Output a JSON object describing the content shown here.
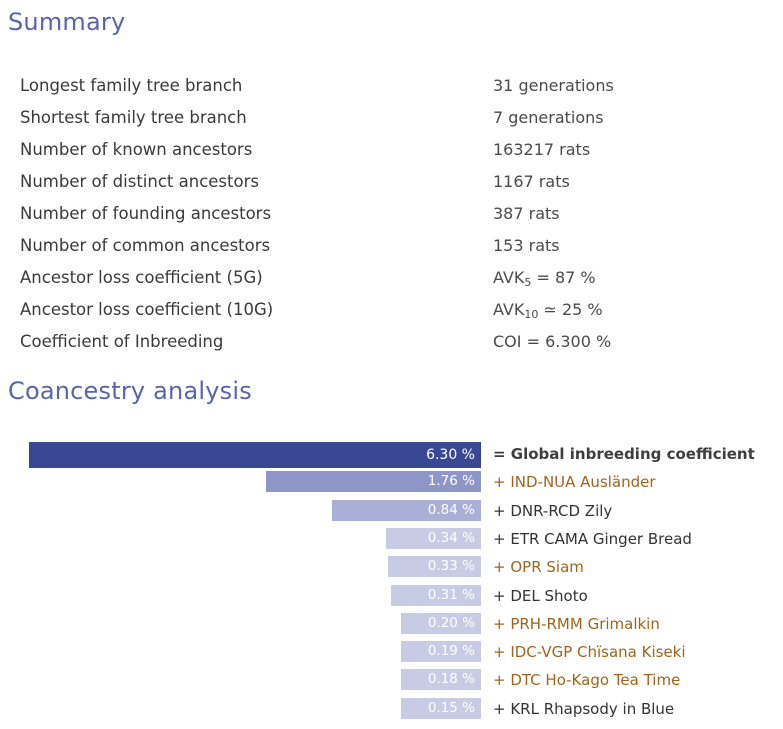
{
  "summary": {
    "title": "Summary",
    "rows": [
      {
        "label": "Longest family tree branch",
        "value": "31 generations"
      },
      {
        "label": "Shortest family tree branch",
        "value": "7 generations"
      },
      {
        "label": "Number of known ancestors",
        "value": "163217 rats"
      },
      {
        "label": "Number of distinct ancestors",
        "value": "1167 rats"
      },
      {
        "label": "Number of founding ancestors",
        "value": "387 rats"
      },
      {
        "label": "Number of common ancestors",
        "value": "153 rats"
      },
      {
        "label": "Ancestor loss coefficient (5G)",
        "value_prefix": "AVK",
        "value_sub": "5",
        "value_suffix": " = 87 %"
      },
      {
        "label": "Ancestor loss coefficient (10G)",
        "value_prefix": "AVK",
        "value_sub": "10",
        "value_suffix": " ≃ 25 %"
      },
      {
        "label": "Coefficient of Inbreeding",
        "value": "COI = 6.300 %"
      }
    ]
  },
  "coancestry": {
    "title": "Coancestry analysis"
  },
  "colors": {
    "title": "#5b63ad",
    "global_bar": "#3a4894",
    "bar_1": "#8e96c8",
    "bar_2": "#a9afd6",
    "bar_rest": "#c7cce4",
    "link_text": "#a0641e",
    "plain_text": "#333333"
  },
  "chart_data": {
    "type": "bar",
    "orientation": "horizontal",
    "bars": [
      {
        "value": 6.3,
        "value_label": "6.30 %",
        "label": "= Global inbreeding coefficient",
        "kind": "global"
      },
      {
        "value": 1.76,
        "value_label": "1.76 %",
        "label": "+ IND-NUA Ausländer",
        "kind": "link"
      },
      {
        "value": 0.84,
        "value_label": "0.84 %",
        "label": "+ DNR-RCD Zily",
        "kind": "plain"
      },
      {
        "value": 0.34,
        "value_label": "0.34 %",
        "label": "+ ETR CAMA Ginger Bread",
        "kind": "plain"
      },
      {
        "value": 0.33,
        "value_label": "0.33 %",
        "label": "+ OPR Siam",
        "kind": "link"
      },
      {
        "value": 0.31,
        "value_label": "0.31 %",
        "label": "+ DEL Shoto",
        "kind": "plain"
      },
      {
        "value": 0.2,
        "value_label": "0.20 %",
        "label": "+ PRH-RMM Grimalkin",
        "kind": "link"
      },
      {
        "value": 0.19,
        "value_label": "0.19 %",
        "label": "+ IDC-VGP Chïsana Kiseki",
        "kind": "link"
      },
      {
        "value": 0.18,
        "value_label": "0.18 %",
        "label": "+ DTC Ho-Kago Tea Time",
        "kind": "link"
      },
      {
        "value": 0.15,
        "value_label": "0.15 %",
        "label": "+ KRL Rhapsody in Blue",
        "kind": "plain"
      }
    ]
  }
}
